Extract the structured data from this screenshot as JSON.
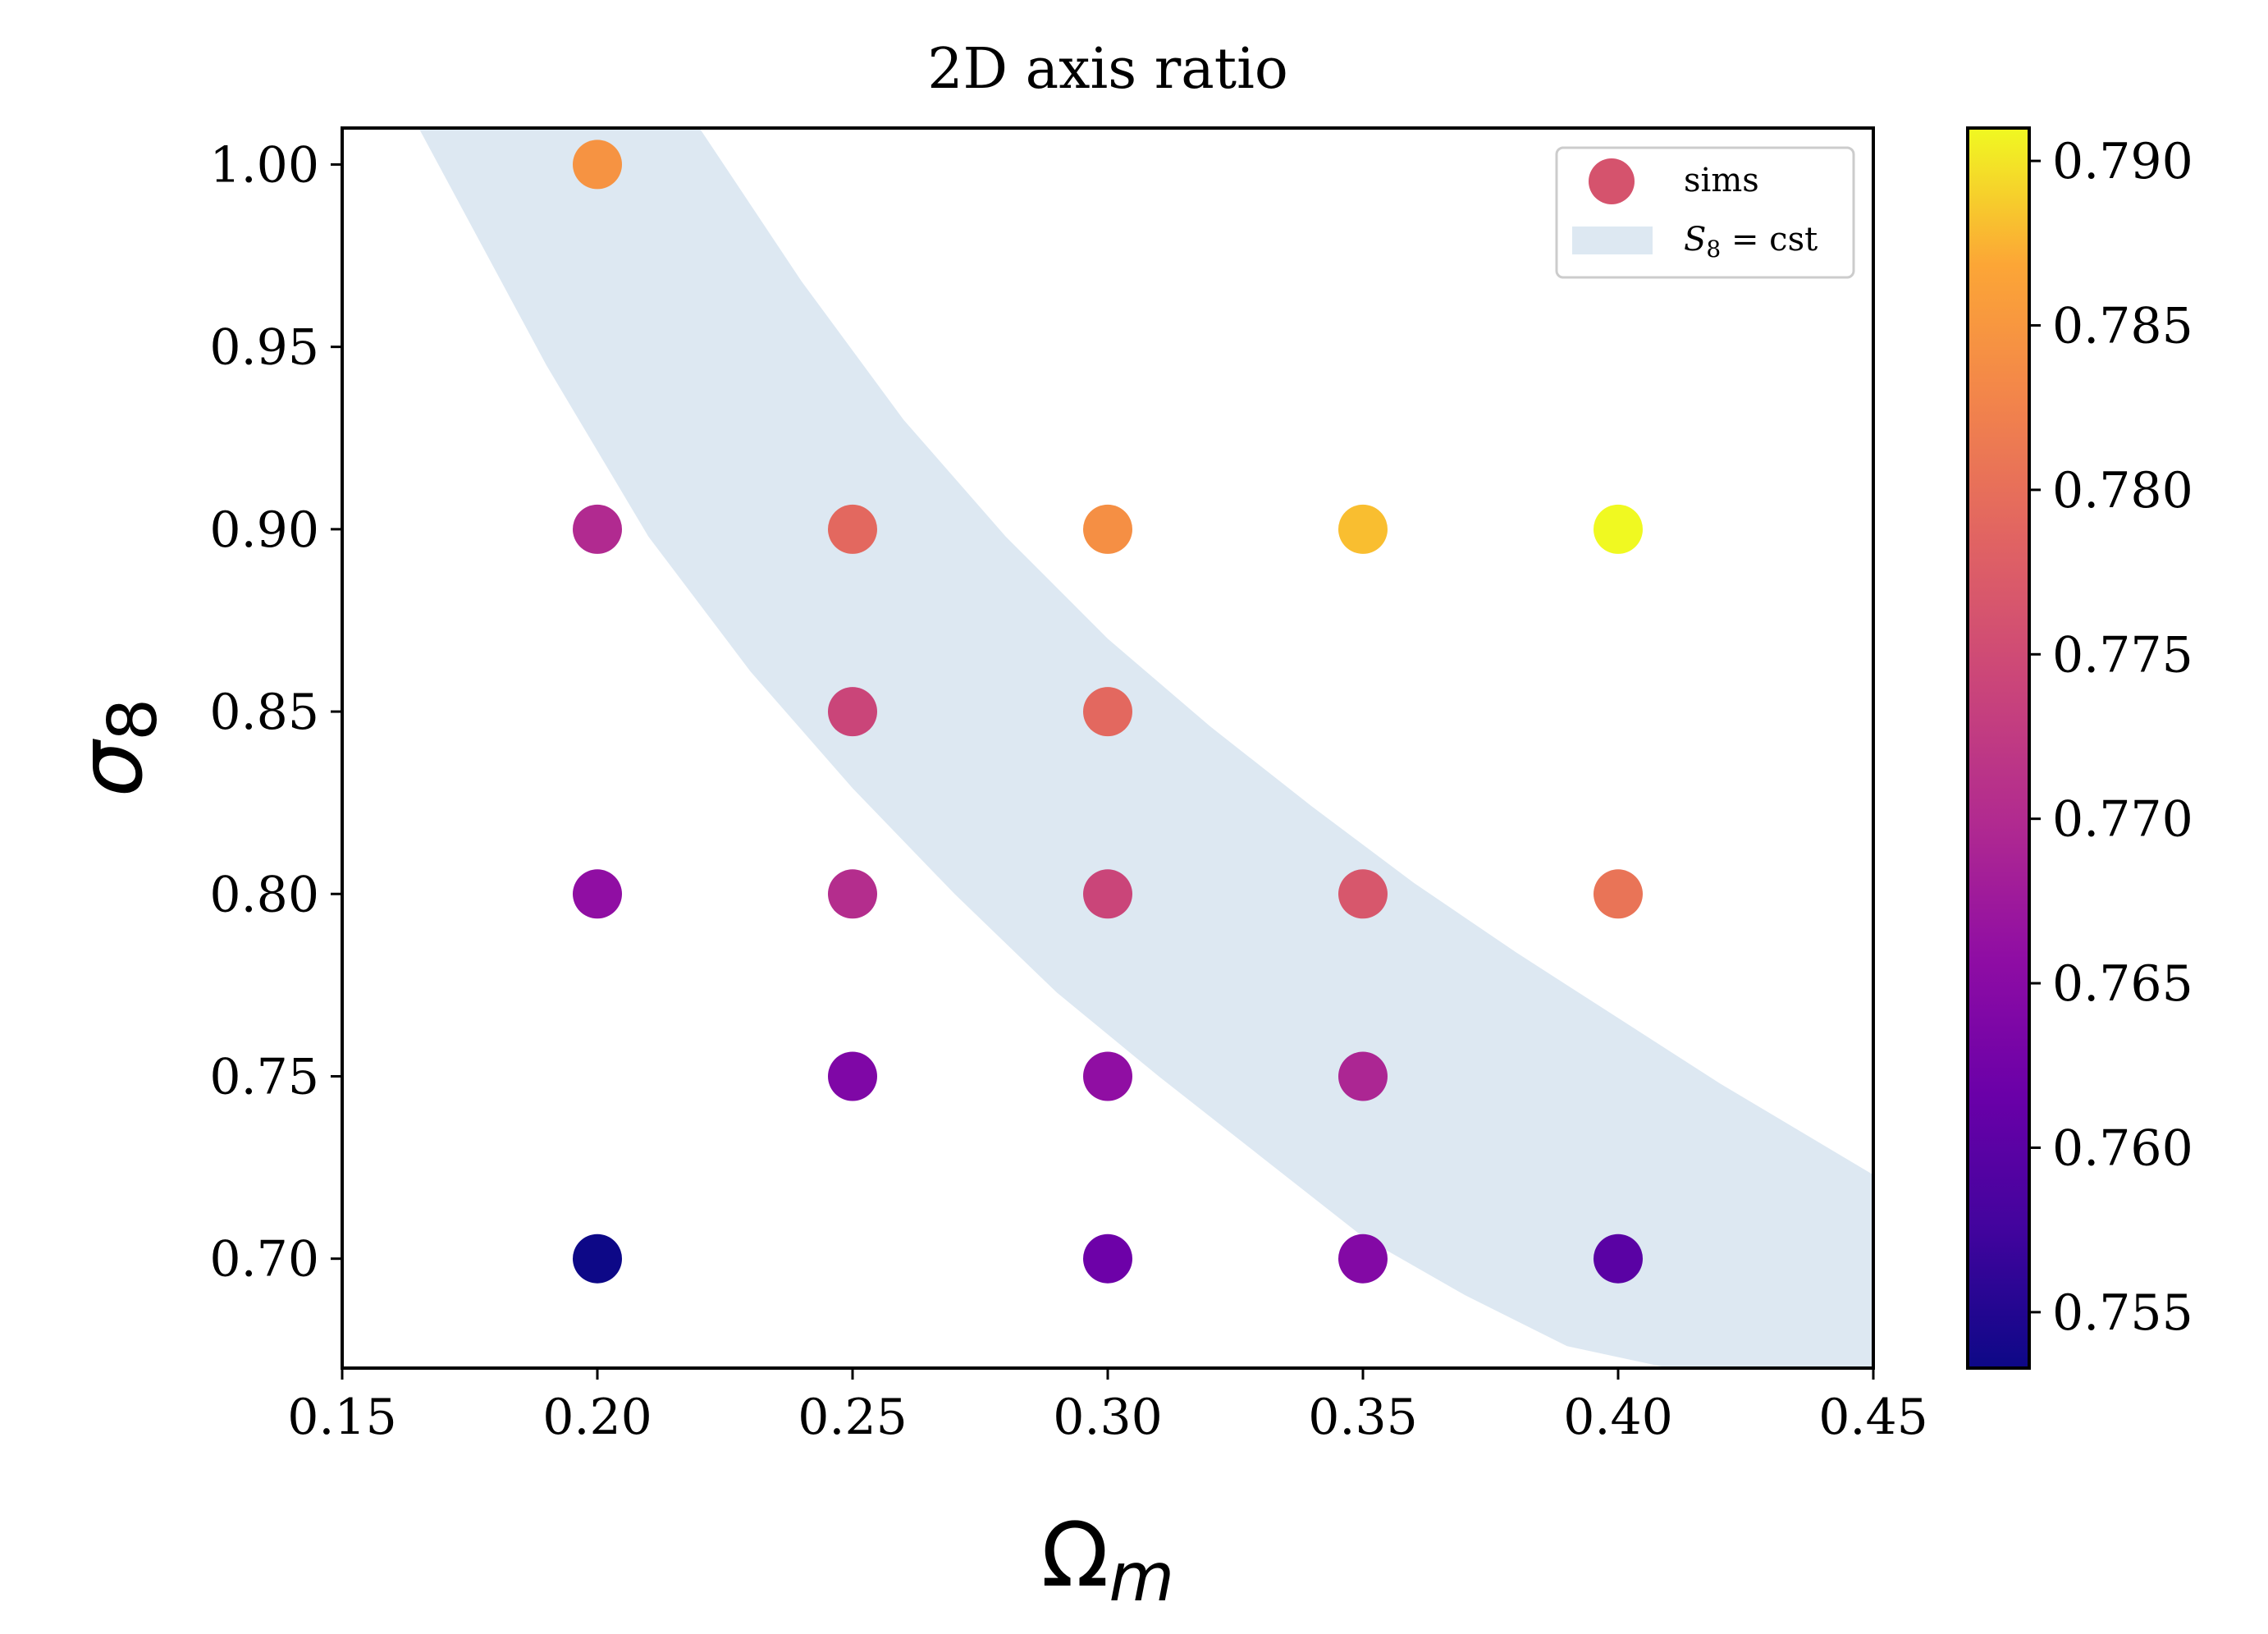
{
  "chart_data": {
    "type": "scatter",
    "title": "2D axis ratio",
    "xlabel": "Ω",
    "xlabel_sub": "m",
    "ylabel": "σ",
    "ylabel_sub": "8",
    "xlim": [
      0.15,
      0.45
    ],
    "ylim": [
      0.67,
      1.01
    ],
    "xticks": [
      0.15,
      0.2,
      0.25,
      0.3,
      0.35,
      0.4,
      0.45
    ],
    "xtick_labels": [
      "0.15",
      "0.20",
      "0.25",
      "0.30",
      "0.35",
      "0.40",
      "0.45"
    ],
    "yticks": [
      0.7,
      0.75,
      0.8,
      0.85,
      0.9,
      0.95,
      1.0
    ],
    "ytick_labels": [
      "0.70",
      "0.75",
      "0.80",
      "0.85",
      "0.90",
      "0.95",
      "1.00"
    ],
    "colormap": "plasma",
    "colorbar": {
      "vmin": 0.7533,
      "vmax": 0.791,
      "ticks": [
        0.755,
        0.76,
        0.765,
        0.77,
        0.775,
        0.78,
        0.785,
        0.79
      ],
      "tick_labels": [
        "0.755",
        "0.760",
        "0.765",
        "0.770",
        "0.775",
        "0.780",
        "0.785",
        "0.790"
      ]
    },
    "legend": {
      "location": "top-right",
      "entries": [
        {
          "label": "sims",
          "kind": "marker",
          "color": "#d5536d"
        },
        {
          "label": "S",
          "label_sub": "8",
          "label_rest": " = cst",
          "kind": "patch",
          "color": "#dde8f2"
        }
      ]
    },
    "band": {
      "label": "S8 = cst",
      "color": "#dde8f2",
      "x_lower": [
        0.165,
        0.19,
        0.21,
        0.23,
        0.25,
        0.27,
        0.29,
        0.31,
        0.33,
        0.35,
        0.37,
        0.39,
        0.41,
        0.43,
        0.45
      ],
      "y_lower": [
        1.01,
        0.945,
        0.898,
        0.861,
        0.829,
        0.8,
        0.773,
        0.75,
        0.728,
        0.706,
        0.69,
        0.676,
        0.67,
        0.67,
        0.67
      ],
      "x_upper": [
        0.22,
        0.24,
        0.26,
        0.28,
        0.3,
        0.32,
        0.34,
        0.36,
        0.38,
        0.4,
        0.42,
        0.45
      ],
      "y_upper": [
        1.01,
        0.968,
        0.93,
        0.898,
        0.87,
        0.846,
        0.824,
        0.803,
        0.784,
        0.766,
        0.748,
        0.723
      ]
    },
    "series": [
      {
        "name": "sims",
        "points": [
          {
            "x": 0.2,
            "y": 1.0,
            "c": 0.7845
          },
          {
            "x": 0.2,
            "y": 0.9,
            "c": 0.77
          },
          {
            "x": 0.25,
            "y": 0.9,
            "c": 0.779
          },
          {
            "x": 0.3,
            "y": 0.9,
            "c": 0.784
          },
          {
            "x": 0.35,
            "y": 0.9,
            "c": 0.788
          },
          {
            "x": 0.4,
            "y": 0.9,
            "c": 0.791
          },
          {
            "x": 0.25,
            "y": 0.85,
            "c": 0.774
          },
          {
            "x": 0.3,
            "y": 0.85,
            "c": 0.779
          },
          {
            "x": 0.2,
            "y": 0.8,
            "c": 0.766
          },
          {
            "x": 0.25,
            "y": 0.8,
            "c": 0.7705
          },
          {
            "x": 0.3,
            "y": 0.8,
            "c": 0.774
          },
          {
            "x": 0.35,
            "y": 0.8,
            "c": 0.7765
          },
          {
            "x": 0.4,
            "y": 0.8,
            "c": 0.7805
          },
          {
            "x": 0.25,
            "y": 0.75,
            "c": 0.764
          },
          {
            "x": 0.3,
            "y": 0.75,
            "c": 0.766
          },
          {
            "x": 0.35,
            "y": 0.75,
            "c": 0.7695
          },
          {
            "x": 0.2,
            "y": 0.7,
            "c": 0.7533
          },
          {
            "x": 0.3,
            "y": 0.7,
            "c": 0.762
          },
          {
            "x": 0.35,
            "y": 0.7,
            "c": 0.7645
          },
          {
            "x": 0.4,
            "y": 0.7,
            "c": 0.76
          }
        ]
      }
    ]
  }
}
